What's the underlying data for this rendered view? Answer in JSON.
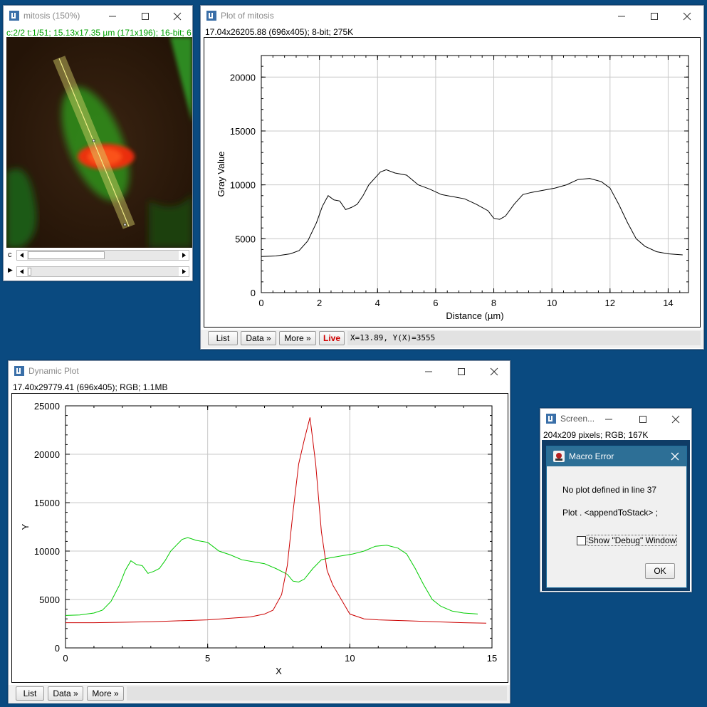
{
  "image_window": {
    "title": "mitosis (150%)",
    "info": "c:2/2 t:1/51; 15.13x17.35 µm (171x196); 16-bit; 6",
    "channel_label": "c",
    "frame_label": "▶"
  },
  "plot_window": {
    "title": "Plot of mitosis",
    "info": "17.04x26205.88  (696x405); 8-bit; 275K",
    "buttons": {
      "list": "List",
      "data": "Data »",
      "more": "More »",
      "live": "Live"
    },
    "status": "X=13.89, Y(X)=3555",
    "chart_data": {
      "type": "line",
      "xlabel": "Distance (µm)",
      "ylabel": "Gray Value",
      "xlim": [
        0,
        14.7
      ],
      "ylim": [
        0,
        22000
      ],
      "xticks": [
        0,
        2,
        4,
        6,
        8,
        10,
        12,
        14
      ],
      "yticks": [
        0,
        5000,
        10000,
        15000,
        20000
      ],
      "grid": true,
      "series": [
        {
          "color": "#000000",
          "x": [
            0,
            0.5,
            1,
            1.3,
            1.6,
            1.9,
            2.1,
            2.3,
            2.5,
            2.7,
            2.9,
            3.1,
            3.3,
            3.5,
            3.7,
            3.9,
            4.1,
            4.3,
            4.6,
            5.0,
            5.4,
            5.8,
            6.2,
            6.6,
            7.0,
            7.4,
            7.8,
            8.0,
            8.2,
            8.4,
            8.7,
            9.0,
            9.3,
            9.7,
            10.1,
            10.5,
            10.9,
            11.3,
            11.7,
            12.0,
            12.3,
            12.6,
            12.9,
            13.2,
            13.6,
            14.0,
            14.5
          ],
          "y": [
            3350,
            3400,
            3600,
            3900,
            4800,
            6500,
            8000,
            9000,
            8600,
            8500,
            7700,
            7900,
            8200,
            9000,
            10000,
            10600,
            11200,
            11400,
            11100,
            10900,
            10000,
            9600,
            9100,
            8900,
            8700,
            8200,
            7600,
            6900,
            6800,
            7100,
            8200,
            9100,
            9300,
            9500,
            9700,
            10000,
            10500,
            10600,
            10300,
            9700,
            8200,
            6500,
            5000,
            4300,
            3800,
            3600,
            3500
          ]
        }
      ]
    }
  },
  "dynamic_window": {
    "title": "Dynamic Plot",
    "info": "17.40x29779.41  (696x405); RGB; 1.1MB",
    "buttons": {
      "list": "List",
      "data": "Data »",
      "more": "More »"
    },
    "chart_data": {
      "type": "line",
      "xlabel": "X",
      "ylabel": "Y",
      "xlim": [
        0,
        15
      ],
      "ylim": [
        0,
        25000
      ],
      "xticks": [
        0,
        5,
        10,
        15
      ],
      "yticks": [
        0,
        5000,
        10000,
        15000,
        20000,
        25000
      ],
      "grid": true,
      "series": [
        {
          "color": "#00cc00",
          "x": [
            0,
            0.5,
            1,
            1.3,
            1.6,
            1.9,
            2.1,
            2.3,
            2.5,
            2.7,
            2.9,
            3.1,
            3.3,
            3.5,
            3.7,
            3.9,
            4.1,
            4.3,
            4.6,
            5.0,
            5.4,
            5.8,
            6.2,
            6.6,
            7.0,
            7.4,
            7.8,
            8.0,
            8.2,
            8.4,
            8.7,
            9.0,
            9.3,
            9.7,
            10.1,
            10.5,
            10.9,
            11.3,
            11.7,
            12.0,
            12.3,
            12.6,
            12.9,
            13.2,
            13.6,
            14.0,
            14.5
          ],
          "y": [
            3350,
            3400,
            3600,
            3900,
            4800,
            6500,
            8000,
            9000,
            8600,
            8500,
            7700,
            7900,
            8200,
            9000,
            10000,
            10600,
            11200,
            11400,
            11100,
            10900,
            10000,
            9600,
            9100,
            8900,
            8700,
            8200,
            7600,
            6900,
            6800,
            7100,
            8200,
            9100,
            9300,
            9500,
            9700,
            10000,
            10500,
            10600,
            10300,
            9700,
            8200,
            6500,
            5000,
            4300,
            3800,
            3600,
            3500
          ]
        },
        {
          "color": "#cc0000",
          "x": [
            0,
            1,
            2,
            3,
            4,
            5,
            6,
            6.5,
            7,
            7.3,
            7.6,
            7.8,
            8.0,
            8.2,
            8.4,
            8.6,
            8.8,
            9.0,
            9.2,
            9.4,
            9.6,
            9.8,
            10.0,
            10.5,
            11,
            12,
            13,
            14,
            14.8
          ],
          "y": [
            2600,
            2600,
            2650,
            2700,
            2800,
            2900,
            3100,
            3200,
            3500,
            3900,
            5500,
            8500,
            14000,
            19000,
            21500,
            23800,
            19000,
            12000,
            8000,
            6500,
            5500,
            4500,
            3500,
            3000,
            2900,
            2800,
            2700,
            2600,
            2550
          ]
        }
      ]
    }
  },
  "screen_window": {
    "title": "Screen...",
    "info": "204x209 pixels; RGB; 167K"
  },
  "macro_error": {
    "title": "Macro Error",
    "message": "No plot defined in line 37",
    "code": "Plot . <appendToStack> ;",
    "checkbox_label": "Show \"Debug\" Window",
    "ok_label": "OK"
  }
}
